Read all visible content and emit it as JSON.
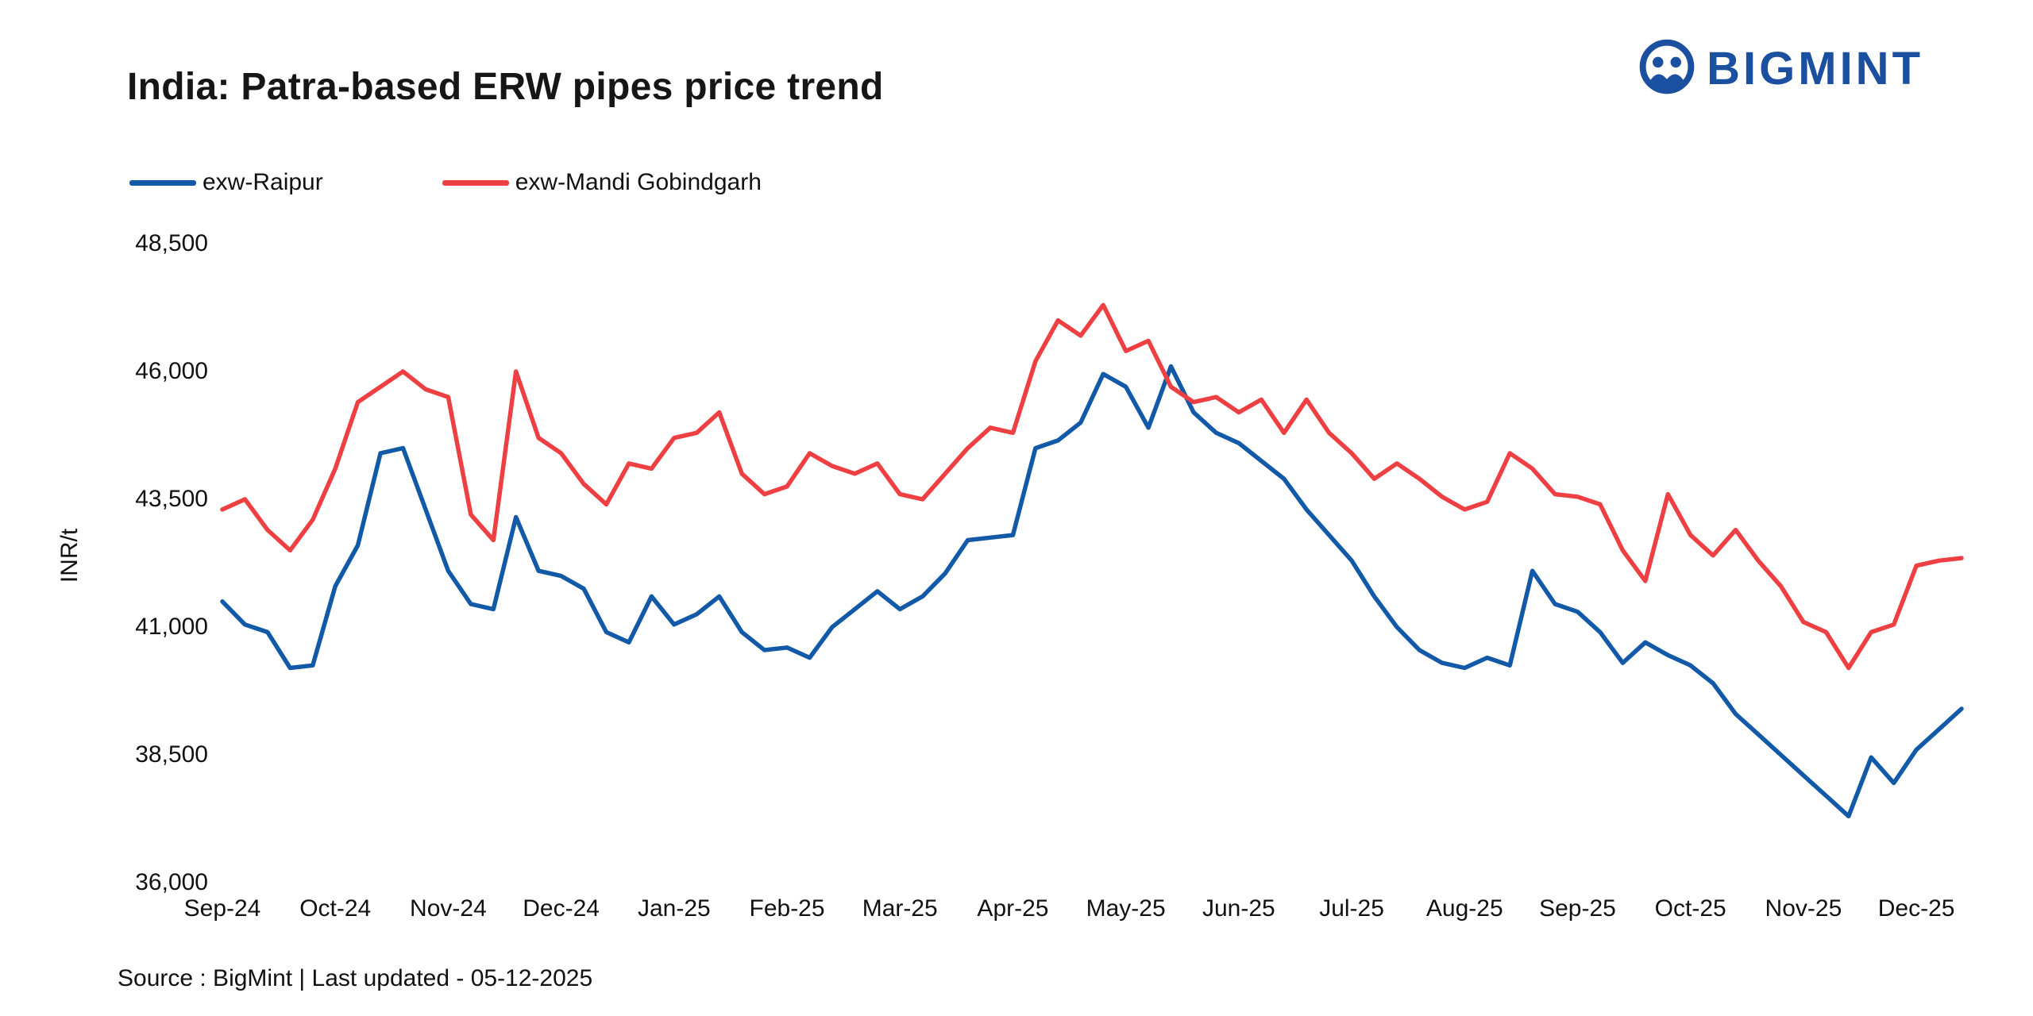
{
  "header": {
    "title": "India: Patra-based ERW pipes price trend",
    "brand": "BIGMINT",
    "brand_color": "#1b4fa0"
  },
  "footer": {
    "source": "Source : BigMint | Last updated - 05-12-2025"
  },
  "chart_data": {
    "type": "line",
    "title": "India: Patra-based ERW pipes price trend",
    "xlabel": "",
    "ylabel": "INR/t",
    "ylim": [
      36000,
      48500
    ],
    "yticks": [
      36000,
      38500,
      41000,
      43500,
      46000,
      48500
    ],
    "grid": false,
    "legend_position": "top-left",
    "categories": [
      "Sep-24",
      "Oct-24",
      "Nov-24",
      "Dec-24",
      "Jan-25",
      "Feb-25",
      "Mar-25",
      "Apr-25",
      "May-25",
      "Jun-25",
      "Jul-25",
      "Aug-25",
      "Sep-25",
      "Oct-25",
      "Nov-25",
      "Dec-25"
    ],
    "points_per_month": 5,
    "series": [
      {
        "name": "exw-Raipur",
        "color": "#1259a7",
        "values": [
          41500,
          41050,
          40900,
          40200,
          40250,
          41800,
          42600,
          44400,
          44500,
          43300,
          42100,
          41450,
          41350,
          43150,
          42100,
          42000,
          41750,
          40900,
          40700,
          41600,
          41050,
          41250,
          41600,
          40900,
          40550,
          40600,
          40400,
          41000,
          41350,
          41700,
          41350,
          41600,
          42050,
          42700,
          42750,
          42800,
          44500,
          44650,
          45000,
          45950,
          45700,
          44900,
          46100,
          45200,
          44800,
          44600,
          44250,
          43900,
          43300,
          42800,
          42300,
          41600,
          41000,
          40550,
          40300,
          40200,
          40400,
          40250,
          42100,
          41450,
          41300,
          40900,
          40300,
          40700,
          40450,
          40250,
          39900,
          39300,
          38900,
          38500,
          38100,
          37700,
          37300,
          38450,
          37950,
          38600,
          39000,
          39400
        ]
      },
      {
        "name": "exw-Mandi Gobindgarh",
        "color": "#ee4043",
        "values": [
          43300,
          43500,
          42900,
          42500,
          43100,
          44100,
          45400,
          45700,
          46000,
          45650,
          45500,
          43200,
          42700,
          46000,
          44700,
          44400,
          43800,
          43400,
          44200,
          44100,
          44700,
          44800,
          45200,
          44000,
          43600,
          43750,
          44400,
          44150,
          44000,
          44200,
          43600,
          43500,
          44000,
          44500,
          44900,
          44800,
          46200,
          47000,
          46700,
          47300,
          46400,
          46600,
          45700,
          45400,
          45500,
          45200,
          45450,
          44800,
          45450,
          44800,
          44400,
          43900,
          44200,
          43900,
          43550,
          43300,
          43450,
          44400,
          44100,
          43600,
          43550,
          43400,
          42500,
          41900,
          43600,
          42800,
          42400,
          42900,
          42300,
          41800,
          41100,
          40900,
          40200,
          40900,
          41050,
          42200,
          42300,
          42350
        ]
      }
    ]
  }
}
